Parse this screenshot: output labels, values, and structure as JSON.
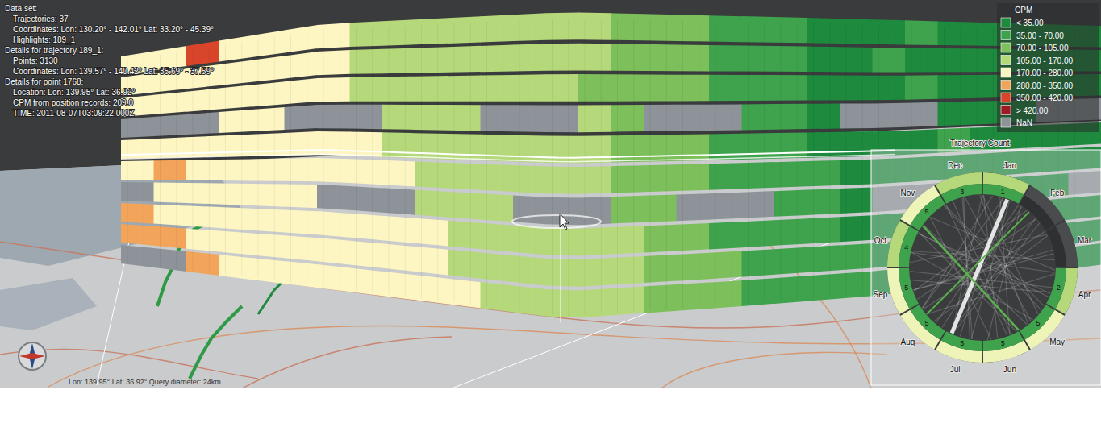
{
  "chart_data": {
    "type": "heatmap",
    "info_panel": {
      "sections": [
        {
          "heading": "Data set:",
          "items": [
            "Trajectories: 37",
            "Coordinates: Lon: 130.20° - 142.01° Lat: 33.20° - 45.39°",
            "Highlights: 189_1"
          ]
        },
        {
          "heading": "Details for trajectory 189_1:",
          "items": [
            "Points: 3130",
            "Coordinates: Lon: 139.57° - 140.42° Lat: 35.69° - 37.59°"
          ]
        },
        {
          "heading": "Details for point 1768:",
          "items": [
            "Location: Lon: 139.95° Lat: 36.92°",
            "CPM from position records: 209.0",
            "TIME: 2011-08-07T03:09:22.000Z"
          ]
        }
      ]
    },
    "query_label": "Lon: 139.95° Lat: 36.92° Query diameter: 24km",
    "legend": {
      "title": "CPM",
      "labels": [
        "< 35.00",
        "35.00 - 70.00",
        "70.00 - 105.00",
        "105.00 - 170.00",
        "170.00 - 280.00",
        "280.00 - 350.00",
        "350.00 - 420.00",
        "> 420.00",
        "NaN"
      ],
      "colors": [
        "#1d8a3e",
        "#3fa34d",
        "#7dbf5a",
        "#b5d97a",
        "#fdf6c3",
        "#f2a55a",
        "#d9452b",
        "#9e1a25",
        "#8d9399"
      ],
      "thresholds": [
        35,
        70,
        105,
        170,
        280,
        350,
        420
      ]
    },
    "wall": {
      "cpm": [
        [
          220,
          240,
          380,
          210,
          190,
          200,
          175,
          160,
          150,
          140,
          130,
          135,
          120,
          125,
          110,
          100,
          95,
          90,
          60,
          55,
          40,
          30,
          25,
          30,
          45,
          30,
          25,
          20,
          30,
          25
        ],
        [
          230,
          210,
          200,
          190,
          185,
          180,
          170,
          165,
          140,
          130,
          150,
          125,
          115,
          120,
          105,
          98,
          90,
          80,
          65,
          50,
          35,
          30,
          28,
          40,
          30,
          25,
          20,
          25,
          30,
          28
        ],
        [
          250,
          230,
          215,
          200,
          195,
          190,
          185,
          150,
          145,
          160,
          135,
          140,
          120,
          110,
          100,
          95,
          85,
          75,
          60,
          45,
          38,
          28,
          30,
          25,
          35,
          30,
          22,
          28,
          26,
          30
        ],
        [
          null,
          null,
          null,
          210,
          200,
          null,
          null,
          null,
          160,
          150,
          140,
          null,
          null,
          null,
          105,
          90,
          null,
          null,
          null,
          50,
          35,
          30,
          null,
          null,
          null,
          28,
          25,
          30,
          null,
          null
        ],
        [
          240,
          220,
          205,
          200,
          190,
          185,
          180,
          175,
          165,
          150,
          145,
          130,
          125,
          115,
          108,
          95,
          88,
          70,
          55,
          48,
          40,
          32,
          30,
          28,
          26,
          35,
          30,
          25,
          28,
          30
        ],
        [
          260,
          300,
          230,
          215,
          200,
          195,
          190,
          180,
          170,
          160,
          150,
          140,
          130,
          118,
          110,
          100,
          90,
          78,
          62,
          52,
          42,
          35,
          30,
          28,
          30,
          25,
          28,
          30,
          26,
          28
        ],
        [
          null,
          245,
          235,
          220,
          210,
          200,
          null,
          null,
          null,
          165,
          155,
          145,
          null,
          null,
          null,
          102,
          92,
          null,
          null,
          null,
          45,
          38,
          32,
          null,
          null,
          null,
          26,
          30,
          28,
          null
        ],
        [
          300,
          270,
          250,
          230,
          215,
          205,
          200,
          190,
          175,
          170,
          160,
          150,
          140,
          125,
          112,
          105,
          95,
          80,
          65,
          55,
          46,
          40,
          34,
          30,
          28,
          25,
          30,
          28,
          26,
          30
        ],
        [
          320,
          290,
          260,
          240,
          225,
          210,
          205,
          195,
          185,
          178,
          168,
          155,
          145,
          130,
          115,
          108,
          98,
          85,
          70,
          58,
          48,
          42,
          36,
          32,
          30,
          28,
          26,
          30,
          28,
          25
        ],
        [
          null,
          null,
          280,
          250,
          230,
          215,
          210,
          200,
          190,
          182,
          172,
          160,
          150,
          135,
          118,
          110,
          100,
          88,
          72,
          60,
          50,
          44,
          38,
          34,
          30,
          28,
          30,
          26,
          28,
          30
        ]
      ]
    },
    "radial_chart": {
      "title": "Trajectory Count",
      "months": [
        "Jan",
        "Feb",
        "Mar",
        "Apr",
        "May",
        "Jun",
        "Jul",
        "Aug",
        "Sep",
        "Oct",
        "Nov",
        "Dec"
      ],
      "counts": [
        1,
        0,
        0,
        2,
        5,
        5,
        5,
        5,
        5,
        4,
        5,
        3
      ]
    }
  }
}
